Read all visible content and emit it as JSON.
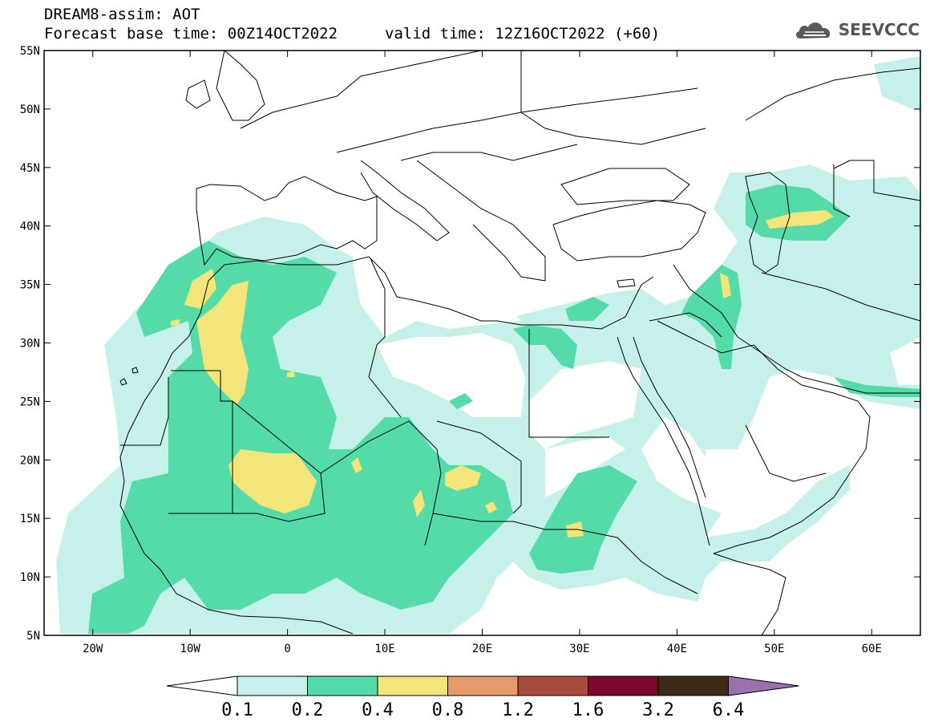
{
  "header": {
    "title_line1": "DREAM8-assim: AOT",
    "title_line2": "Forecast base time: 00Z14OCT2022",
    "valid_time": "valid time: 12Z16OCT2022 (+60)",
    "logo_text": "SEEVCCC",
    "logo_icon": "cloud-logo-icon"
  },
  "map": {
    "projection": "lat-lon",
    "lon_range": [
      -25,
      65
    ],
    "lat_range": [
      5,
      55
    ],
    "lat_ticks": [
      "55N",
      "50N",
      "45N",
      "40N",
      "35N",
      "30N",
      "25N",
      "20N",
      "15N",
      "10N",
      "5N"
    ],
    "lon_ticks": [
      "20W",
      "10W",
      "0",
      "10E",
      "20E",
      "30E",
      "40E",
      "50E",
      "60E"
    ]
  },
  "colorbar": {
    "labels": [
      "0.1",
      "0.2",
      "0.4",
      "0.8",
      "1.2",
      "1.6",
      "3.2",
      "6.4"
    ],
    "colors": [
      "#ffffff",
      "#c6f1ea",
      "#55dba8",
      "#f3e57a",
      "#e79a6a",
      "#a7493b",
      "#7b0a2a",
      "#3d2b17",
      "#9b6fb0"
    ]
  }
}
